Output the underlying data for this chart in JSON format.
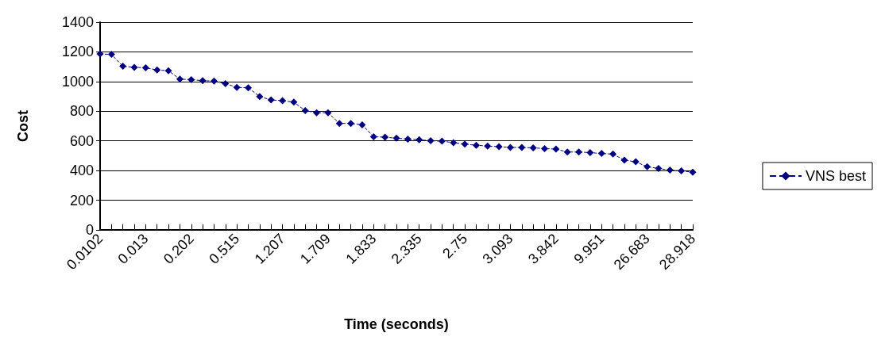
{
  "chart_data": {
    "type": "line",
    "xlabel": "Time (seconds)",
    "ylabel": "Cost",
    "categories": [
      "0.0102",
      null,
      null,
      null,
      "0.013",
      null,
      null,
      null,
      "0.202",
      null,
      null,
      null,
      "0.515",
      null,
      null,
      null,
      "1.207",
      null,
      null,
      null,
      "1.709",
      null,
      null,
      null,
      "1.833",
      null,
      null,
      null,
      "2.335",
      null,
      null,
      null,
      "2.75",
      null,
      null,
      null,
      "3.093",
      null,
      null,
      null,
      "3.842",
      null,
      null,
      null,
      "9.951",
      null,
      null,
      null,
      "26.683",
      null,
      null,
      null,
      "28.918"
    ],
    "series": [
      {
        "name": "VNS best",
        "color": "#000080",
        "values": [
          1186,
          1183,
          1103,
          1096,
          1093,
          1078,
          1073,
          1016,
          1013,
          1006,
          1003,
          986,
          961,
          958,
          899,
          876,
          871,
          861,
          804,
          790,
          790,
          718,
          718,
          708,
          628,
          625,
          618,
          612,
          608,
          601,
          598,
          588,
          578,
          571,
          565,
          561,
          556,
          556,
          553,
          548,
          545,
          525,
          525,
          521,
          515,
          511,
          470,
          459,
          426,
          414,
          403,
          398,
          389
        ]
      }
    ],
    "ylim": [
      0,
      1400
    ],
    "yticks": [
      0,
      200,
      400,
      600,
      800,
      1000,
      1200,
      1400
    ],
    "grid": "y",
    "legend": "right",
    "marker": "diamond",
    "line_style": "dashed"
  }
}
